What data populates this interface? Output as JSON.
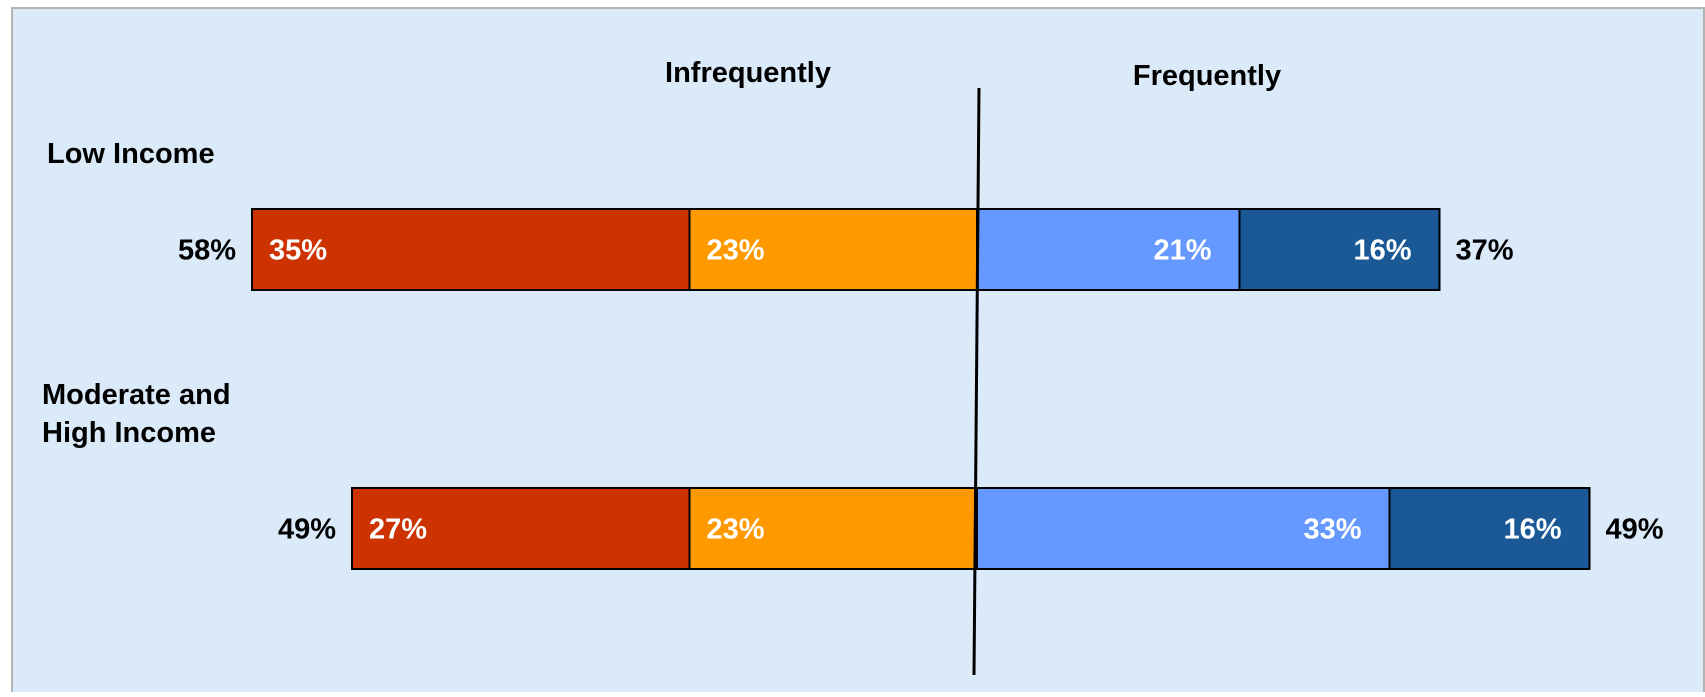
{
  "chart_data": {
    "type": "bar",
    "orientation": "horizontal",
    "stacked": true,
    "diverging": true,
    "title": "",
    "xlabel": "",
    "ylabel": "",
    "headers": {
      "left": "Infrequently",
      "right": "Frequently"
    },
    "legend": "none",
    "grid": false,
    "categories": [
      "Low Income",
      "Moderate and High Income"
    ],
    "category_lines": [
      [
        "Low Income"
      ],
      [
        "Moderate and",
        "High Income"
      ]
    ],
    "series": [
      {
        "side": "left",
        "color": "#cc3300",
        "values": [
          35,
          27
        ],
        "labels": [
          "35%",
          "27%"
        ]
      },
      {
        "side": "left",
        "color": "#ff9900",
        "values": [
          23,
          23
        ],
        "labels": [
          "23%",
          "23%"
        ]
      },
      {
        "side": "right",
        "color": "#6699ff",
        "values": [
          21,
          33
        ],
        "labels": [
          "21%",
          "33%"
        ]
      },
      {
        "side": "right",
        "color": "#1a5896",
        "values": [
          16,
          16
        ],
        "labels": [
          "16%",
          "16%"
        ]
      }
    ],
    "totals_left": [
      "58%",
      "49%"
    ],
    "totals_right": [
      "37%",
      "49%"
    ]
  },
  "colors": {
    "background": "#dbeaf8",
    "border": "#b3b3b3",
    "text": "#000000",
    "bar_label": "#ffffff"
  }
}
